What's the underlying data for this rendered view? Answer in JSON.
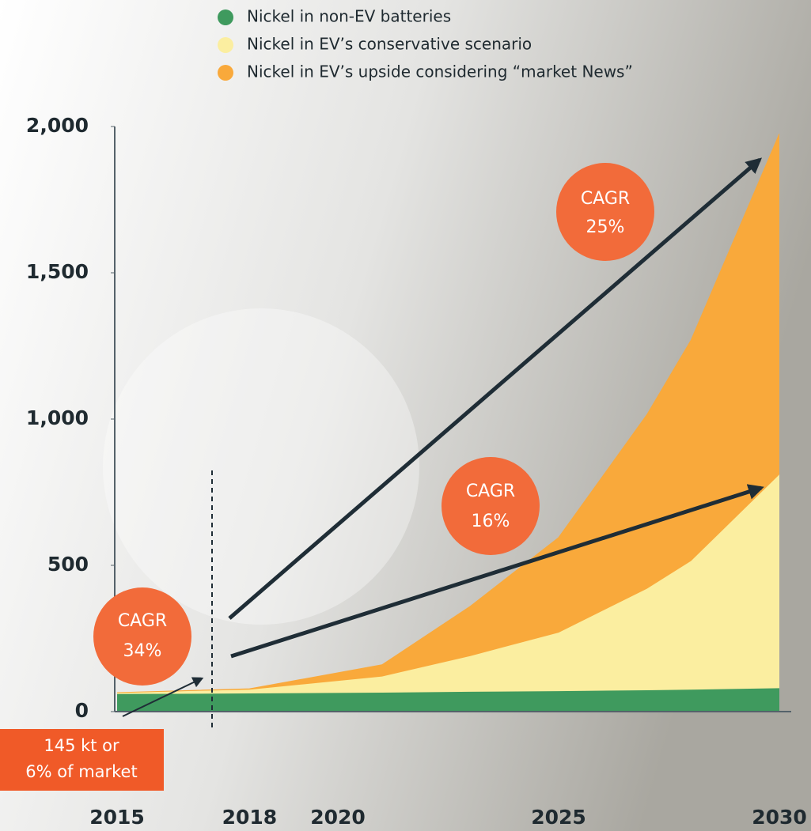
{
  "chart_data": {
    "type": "stacked-area",
    "x": [
      2015,
      2018,
      2021,
      2023,
      2025,
      2027,
      2028,
      2030
    ],
    "series": [
      {
        "name": "Nickel in non-EV batteries",
        "color": "#3f9a5e",
        "values": [
          60,
          62,
          65,
          68,
          70,
          73,
          75,
          80
        ]
      },
      {
        "name": "Nickel in EV’s conservative scenario",
        "color": "#fbeea0",
        "values": [
          5,
          13,
          55,
          122,
          200,
          347,
          440,
          730
        ]
      },
      {
        "name": "Nickel in EV’s upside considering “market News”",
        "color": "#f9a93b",
        "values": [
          0,
          3,
          40,
          170,
          325,
          595,
          755,
          1165
        ]
      }
    ],
    "xlim": [
      2015,
      2030
    ],
    "xticks": [
      2015,
      2018,
      2020,
      2025,
      2030
    ],
    "ylim": [
      0,
      2000
    ],
    "yticks": [
      0,
      500,
      {
        "value": 1000,
        "label": "1,000"
      },
      {
        "value": 1500,
        "label": "1,500"
      },
      {
        "value": 2000,
        "label": "2,000"
      }
    ],
    "grid": false,
    "annotations": [
      [
        "CAGR",
        "25%"
      ],
      [
        "CAGR",
        "16%"
      ],
      [
        "CAGR",
        "34%"
      ],
      [
        "145 kt or",
        "6% of market"
      ]
    ]
  }
}
